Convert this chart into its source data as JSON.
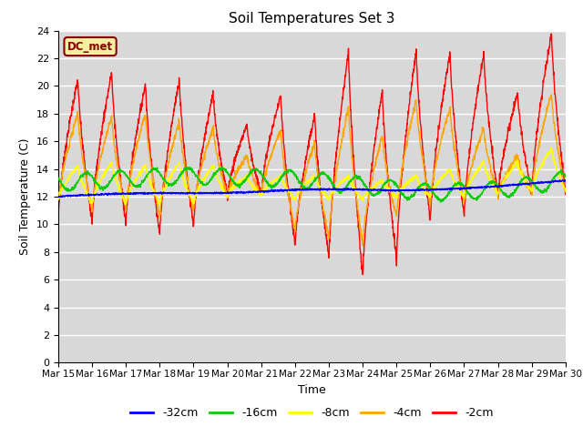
{
  "title": "Soil Temperatures Set 3",
  "xlabel": "Time",
  "ylabel": "Soil Temperature (C)",
  "ylim": [
    0,
    24
  ],
  "yticks": [
    0,
    2,
    4,
    6,
    8,
    10,
    12,
    14,
    16,
    18,
    20,
    22,
    24
  ],
  "legend_label": "DC_met",
  "series_labels": [
    "-32cm",
    "-16cm",
    "-8cm",
    "-4cm",
    "-2cm"
  ],
  "series_colors": [
    "blue",
    "#00cc00",
    "yellow",
    "orange",
    "red"
  ],
  "background_color": "#d8d8d8",
  "n_days": 15,
  "start_day": 15,
  "points_per_day": 144,
  "figsize": [
    6.4,
    4.8
  ],
  "dpi": 100
}
